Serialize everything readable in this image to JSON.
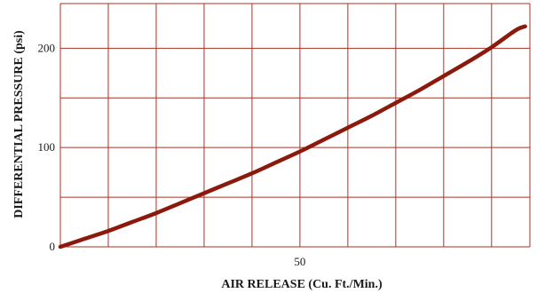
{
  "chart_data": {
    "type": "line",
    "title": "",
    "xlabel": "AIR RELEASE (Cu. Ft./Min.)",
    "ylabel": "DIFFERENTIAL PRESSURE (psi)",
    "xlim": [
      0,
      98
    ],
    "ylim": [
      0,
      245
    ],
    "x_ticks": [
      {
        "value": 50,
        "label": "50"
      }
    ],
    "y_ticks": [
      {
        "value": 0,
        "label": "0"
      },
      {
        "value": 100,
        "label": "100"
      },
      {
        "value": 200,
        "label": "200"
      }
    ],
    "x_grid": [
      0,
      10,
      20,
      30,
      40,
      50,
      60,
      70,
      80,
      90,
      98
    ],
    "y_grid": [
      0,
      50,
      100,
      150,
      200,
      245
    ],
    "grid": true,
    "legend": "none",
    "series": [
      {
        "x": [
          0,
          5,
          10,
          15,
          20,
          25,
          30,
          35,
          40,
          45,
          50,
          55,
          60,
          65,
          70,
          75,
          80,
          85,
          90,
          95,
          97
        ],
        "y": [
          0,
          8,
          16,
          25,
          34,
          44,
          54,
          64,
          74,
          85,
          96,
          108,
          120,
          132,
          145,
          158,
          172,
          186,
          201,
          218,
          222
        ]
      }
    ],
    "colors": {
      "grid": "#a93226",
      "line": "#8b1a0c",
      "text": "#1a1a1a"
    }
  }
}
